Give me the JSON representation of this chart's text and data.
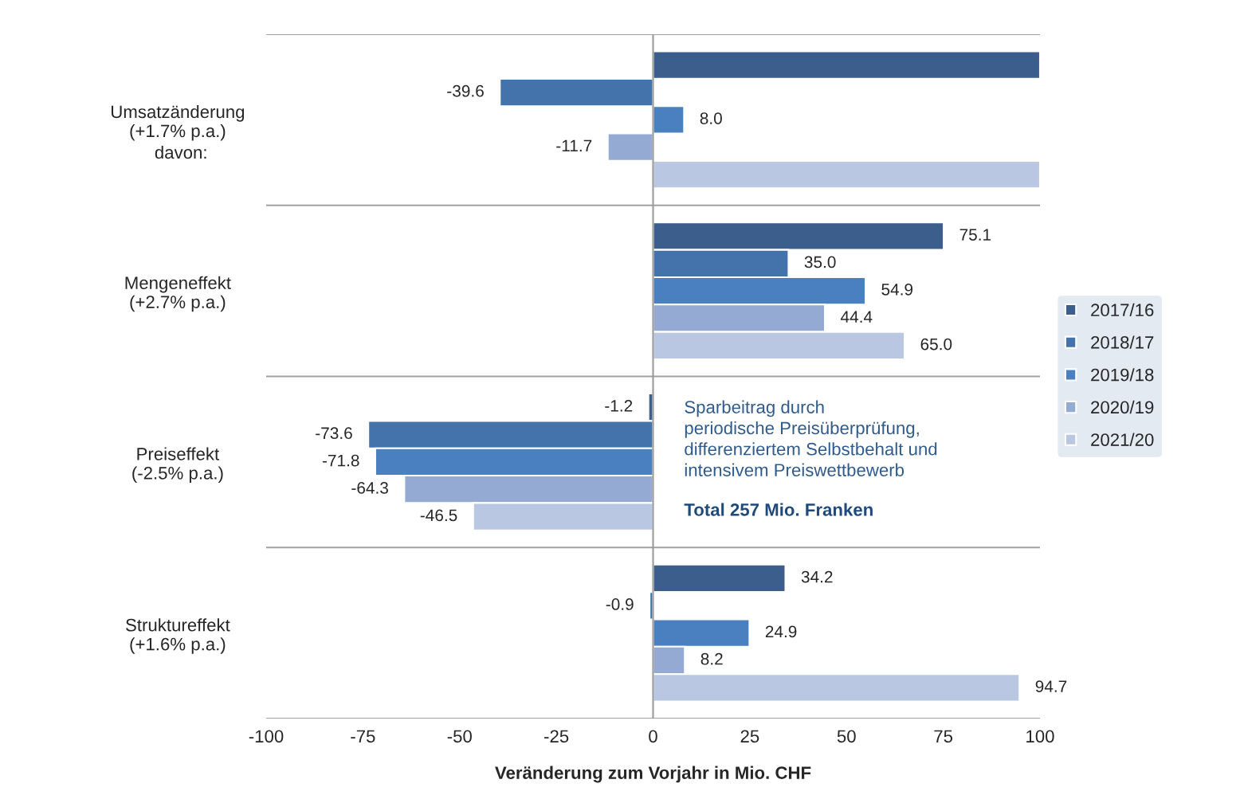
{
  "chart_data": {
    "type": "bar",
    "orientation": "horizontal",
    "xlabel": "Veränderung zum Vorjahr in Mio. CHF",
    "categories": [
      "Umsatzänderung\n(+1.7% p.a.)",
      "Mengeneffekt\n(+2.7% p.a.)",
      "Preiseffekt\n(-2.5% p.a.)",
      "Struktureffekt\n(+1.6% p.a.)"
    ],
    "series": [
      {
        "name": "2017/16",
        "color": "#3b5e8c",
        "values": [
          100,
          75.1,
          -1.2,
          34.2
        ],
        "value_labels": [
          null,
          "75.1",
          "-1.2",
          "34.2"
        ]
      },
      {
        "name": "2018/17",
        "color": "#4472aa",
        "values": [
          -39.6,
          35.0,
          -73.6,
          -0.9
        ],
        "value_labels": [
          "-39.6",
          "35.0",
          "-73.6",
          "-0.9"
        ]
      },
      {
        "name": "2019/18",
        "color": "#4b80c0",
        "values": [
          8.0,
          54.9,
          -71.8,
          24.9
        ],
        "value_labels": [
          "8.0",
          "54.9",
          "-71.8",
          "24.9"
        ]
      },
      {
        "name": "2020/19",
        "color": "#94aad3",
        "values": [
          -11.7,
          44.4,
          -64.3,
          8.2
        ],
        "value_labels": [
          "-11.7",
          "44.4",
          "-64.3",
          "8.2"
        ]
      },
      {
        "name": "2021/20",
        "color": "#b9c7e2",
        "values": [
          100,
          65.0,
          -46.5,
          94.7
        ],
        "value_labels": [
          null,
          "65.0",
          "-46.5",
          "94.7"
        ]
      }
    ],
    "xlim": [
      -100,
      100
    ],
    "xticks": [
      -100,
      -75,
      -50,
      -25,
      0,
      25,
      50,
      75,
      100
    ],
    "ref_lines": [
      {
        "axis": "x",
        "value": 0,
        "color": "#999999"
      }
    ],
    "annotations": [
      "davon:",
      "Sparbeitrag durch\nperiodische Preisüberprüfung,\ndifferenziertem Selbstbehalt und\nintensivem Preiswettbewerb",
      "Total 257 Mio. Franken"
    ],
    "grid": "y",
    "legend": "right"
  }
}
